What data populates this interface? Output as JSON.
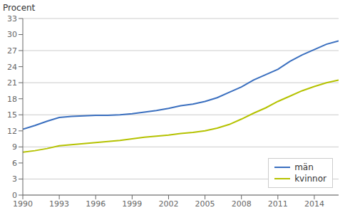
{
  "chart_data": {
    "type": "line",
    "y_label": "Procent",
    "x": [
      1990,
      1991,
      1992,
      1993,
      1994,
      1995,
      1996,
      1997,
      1998,
      1999,
      2000,
      2001,
      2002,
      2003,
      2004,
      2005,
      2006,
      2007,
      2008,
      2009,
      2010,
      2011,
      2012,
      2013,
      2014,
      2015,
      2016
    ],
    "series": [
      {
        "name": "män",
        "color": "#3a6fbf",
        "values": [
          12.3,
          13.0,
          13.8,
          14.5,
          14.7,
          14.8,
          14.9,
          14.9,
          15.0,
          15.2,
          15.5,
          15.8,
          16.2,
          16.7,
          17.0,
          17.5,
          18.2,
          19.2,
          20.2,
          21.5,
          22.5,
          23.5,
          25.0,
          26.2,
          27.2,
          28.2,
          28.8
        ]
      },
      {
        "name": "kvinnor",
        "color": "#b5c200",
        "values": [
          8.0,
          8.3,
          8.7,
          9.2,
          9.4,
          9.6,
          9.8,
          10.0,
          10.2,
          10.5,
          10.8,
          11.0,
          11.2,
          11.5,
          11.7,
          12.0,
          12.5,
          13.2,
          14.2,
          15.3,
          16.3,
          17.5,
          18.5,
          19.5,
          20.3,
          21.0,
          21.5
        ]
      }
    ],
    "xlim": [
      1990,
      2016
    ],
    "xticks": [
      1990,
      1993,
      1996,
      1999,
      2002,
      2005,
      2008,
      2011,
      2014
    ],
    "ylim": [
      0,
      33
    ],
    "yticks": [
      0,
      3,
      6,
      9,
      12,
      15,
      18,
      21,
      24,
      27,
      30,
      33
    ],
    "grid": true,
    "legend": "lower right"
  }
}
